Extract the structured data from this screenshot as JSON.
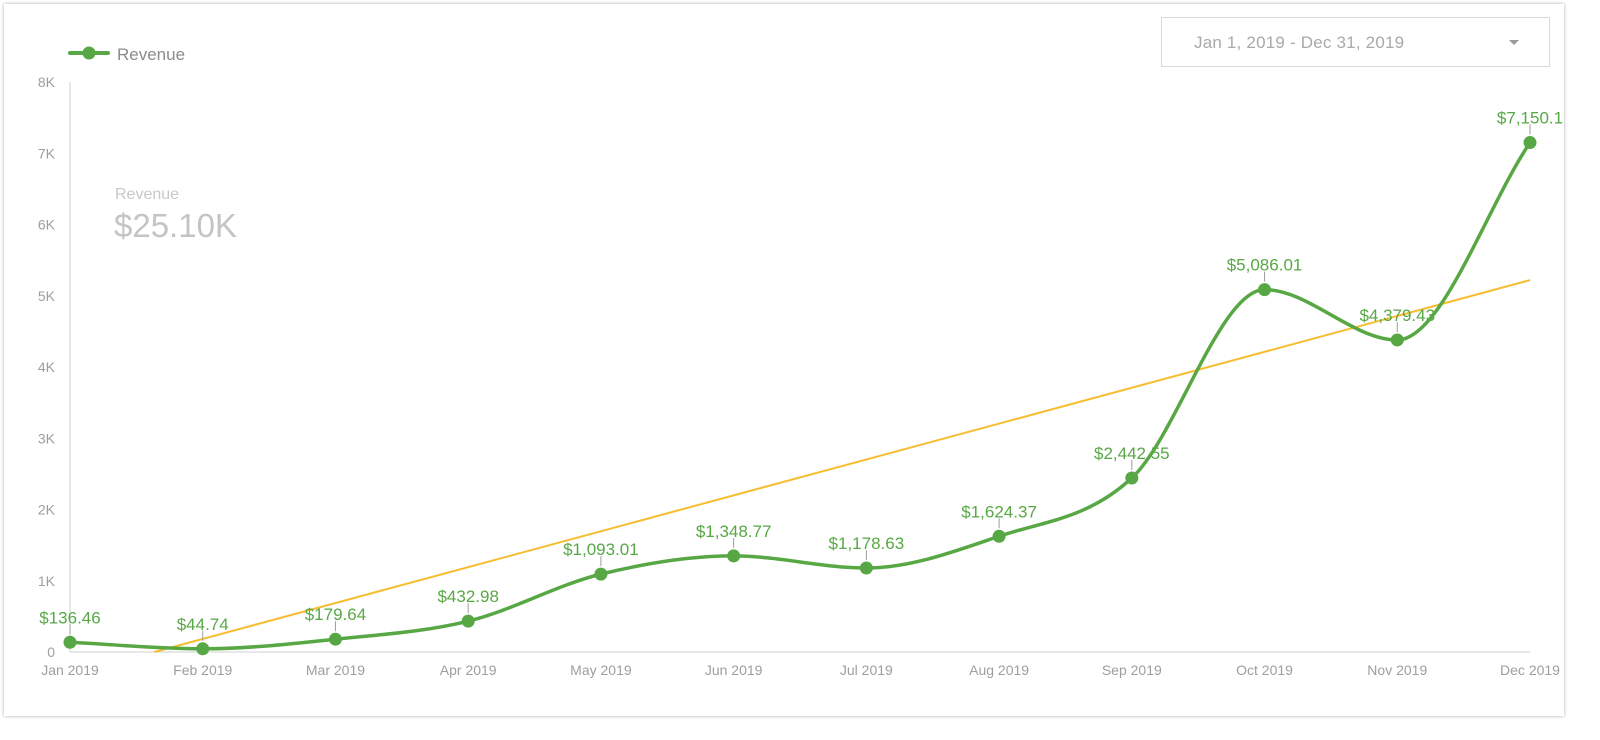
{
  "date_range": {
    "label": "Jan 1, 2019 - Dec 31, 2019",
    "caret_icon": "dropdown-caret-icon"
  },
  "scorecard": {
    "label": "Revenue",
    "value": "$25.10K"
  },
  "colors": {
    "series": "#57a845",
    "trendline": "#f6bd2f",
    "axis": "#cfcfcf",
    "tick_text": "#9e9e9e"
  },
  "chart_data": {
    "type": "line",
    "title": "",
    "xlabel": "",
    "ylabel": "",
    "categories": [
      "Jan 2019",
      "Feb 2019",
      "Mar 2019",
      "Apr 2019",
      "May 2019",
      "Jun 2019",
      "Jul 2019",
      "Aug 2019",
      "Sep 2019",
      "Oct 2019",
      "Nov 2019",
      "Dec 2019"
    ],
    "series": [
      {
        "name": "Revenue",
        "values": [
          136.46,
          44.74,
          179.64,
          432.98,
          1093.01,
          1348.77,
          1178.63,
          1624.37,
          2442.55,
          5086.01,
          4379.43,
          7150.1
        ],
        "labels": [
          "$136.46",
          "$44.74",
          "$179.64",
          "$432.98",
          "$1,093.01",
          "$1,348.77",
          "$1,178.63",
          "$1,624.37",
          "$2,442.55",
          "$5,086.01",
          "$4,379.43",
          "$7,150.1"
        ],
        "smooth": true,
        "markers": true
      }
    ],
    "trendline": {
      "type": "linear",
      "start_value": -320,
      "end_value": 5220
    },
    "ylim": [
      0,
      8000
    ],
    "yticks": [
      0,
      1000,
      2000,
      3000,
      4000,
      5000,
      6000,
      7000,
      8000
    ],
    "ytick_labels": [
      "0",
      "1K",
      "2K",
      "3K",
      "4K",
      "5K",
      "6K",
      "7K",
      "8K"
    ],
    "legend_position": "top-left",
    "grid": false
  }
}
